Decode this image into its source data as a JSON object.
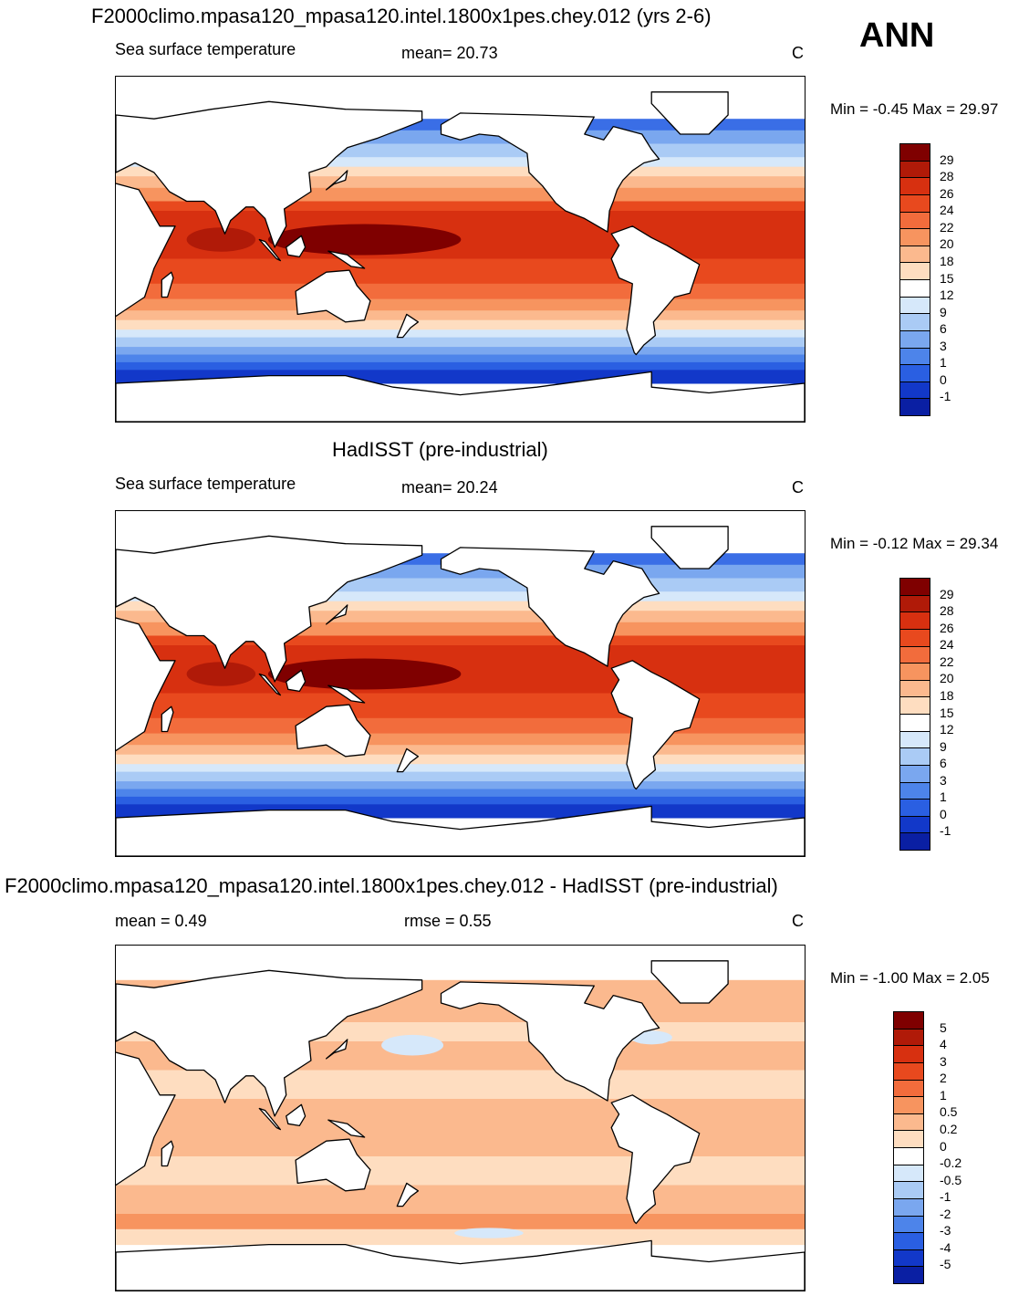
{
  "season": "ANN",
  "panels": [
    {
      "title": "F2000climo.mpasa120_mpasa120.intel.1800x1pes.chey.012 (yrs 2-6)",
      "variable": "Sea surface temperature",
      "stat_text": "mean=  20.73",
      "stat2_text": "",
      "units": "C",
      "minmax_text": "Min =  -0.45 Max =  29.97",
      "colorbar": {
        "labels": [
          "29",
          "28",
          "26",
          "24",
          "22",
          "20",
          "18",
          "15",
          "12",
          "9",
          "6",
          "3",
          "1",
          "0",
          "-1"
        ],
        "colors": [
          "#7f0000",
          "#b01a08",
          "#d73010",
          "#e8491e",
          "#f26c3c",
          "#f7945f",
          "#fbb98e",
          "#feddc0",
          "#ffffff",
          "#d6e8fa",
          "#aacbf5",
          "#7aa7ef",
          "#4d84ea",
          "#2a5fe2",
          "#1238c9",
          "#0a1fa3"
        ]
      },
      "palette": "sst"
    },
    {
      "title": "HadISST (pre-industrial)",
      "variable": "Sea surface temperature",
      "stat_text": "mean=  20.24",
      "stat2_text": "",
      "units": "C",
      "minmax_text": "Min =  -0.12 Max =  29.34",
      "colorbar": {
        "labels": [
          "29",
          "28",
          "26",
          "24",
          "22",
          "20",
          "18",
          "15",
          "12",
          "9",
          "6",
          "3",
          "1",
          "0",
          "-1"
        ],
        "colors": [
          "#7f0000",
          "#b01a08",
          "#d73010",
          "#e8491e",
          "#f26c3c",
          "#f7945f",
          "#fbb98e",
          "#feddc0",
          "#ffffff",
          "#d6e8fa",
          "#aacbf5",
          "#7aa7ef",
          "#4d84ea",
          "#2a5fe2",
          "#1238c9",
          "#0a1fa3"
        ]
      },
      "palette": "sst"
    },
    {
      "title": "F2000climo.mpasa120_mpasa120.intel.1800x1pes.chey.012 - HadISST (pre-industrial)",
      "variable": "",
      "stat_text": "mean =    0.49",
      "stat2_text": "rmse =    0.55",
      "units": "C",
      "minmax_text": "Min =  -1.00 Max =    2.05",
      "colorbar": {
        "labels": [
          "5",
          "4",
          "3",
          "2",
          "1",
          "0.5",
          "0.2",
          "0",
          "-0.2",
          "-0.5",
          "-1",
          "-2",
          "-3",
          "-4",
          "-5"
        ],
        "colors": [
          "#7f0000",
          "#b01a08",
          "#d73010",
          "#e8491e",
          "#f26c3c",
          "#f7945f",
          "#fbb98e",
          "#feddc0",
          "#ffffff",
          "#d6e8fa",
          "#aacbf5",
          "#7aa7ef",
          "#4d84ea",
          "#2a5fe2",
          "#1238c9",
          "#0a1fa3"
        ]
      },
      "palette": "diff"
    }
  ]
}
